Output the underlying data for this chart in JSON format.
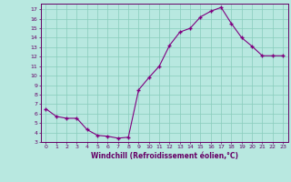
{
  "x": [
    0,
    1,
    2,
    3,
    4,
    5,
    6,
    7,
    8,
    9,
    10,
    11,
    12,
    13,
    14,
    15,
    16,
    17,
    18,
    19,
    20,
    21,
    22,
    23
  ],
  "y": [
    6.5,
    5.7,
    5.5,
    5.5,
    4.3,
    3.7,
    3.6,
    3.4,
    3.5,
    8.5,
    9.8,
    11.0,
    13.2,
    14.6,
    15.0,
    16.2,
    16.8,
    17.2,
    15.5,
    14.0,
    13.1,
    12.1,
    12.1,
    12.1
  ],
  "line_color": "#800080",
  "marker": "+",
  "bg_color": "#b8e8e0",
  "grid_color": "#88ccbb",
  "xlabel": "Windchill (Refroidissement éolien,°C)",
  "ylabel_ticks": [
    3,
    4,
    5,
    6,
    7,
    8,
    9,
    10,
    11,
    12,
    13,
    14,
    15,
    16,
    17
  ],
  "xlim": [
    -0.5,
    23.5
  ],
  "ylim": [
    3,
    17.6
  ],
  "axis_color": "#660066",
  "tick_color": "#660066",
  "label_color": "#660066"
}
